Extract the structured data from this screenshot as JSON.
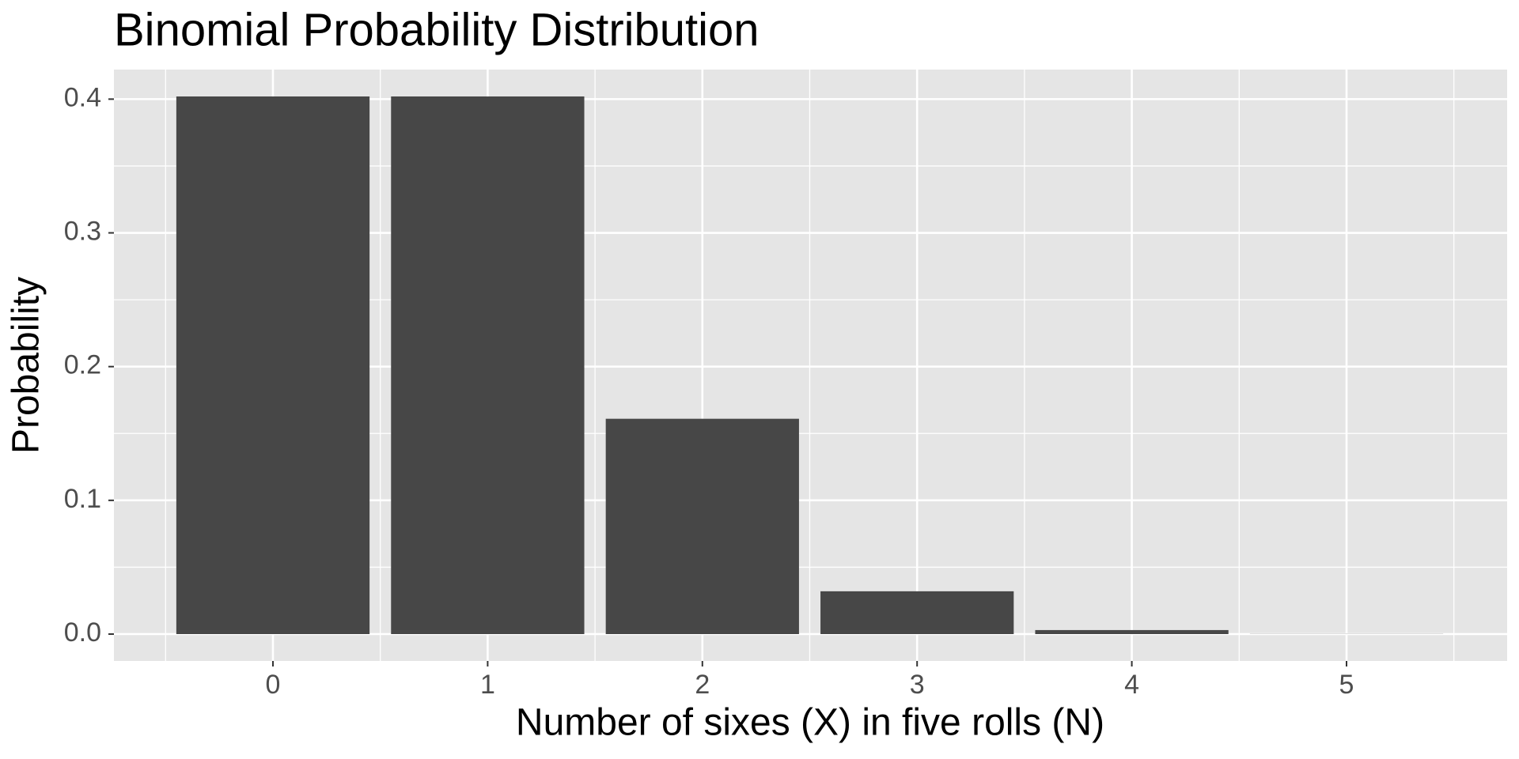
{
  "chart_data": {
    "type": "bar",
    "title": "Binomial Probability Distribution",
    "x_label": "Number of sixes (X) in five rolls (N)",
    "y_label": "Probability",
    "categories": [
      "0",
      "1",
      "2",
      "3",
      "4",
      "5"
    ],
    "values": [
      0.402,
      0.402,
      0.161,
      0.032,
      0.003,
      0.0001
    ],
    "color": "#474747",
    "ylim": [
      -0.0201,
      0.4221
    ],
    "yticks": [
      {
        "value": 0,
        "label": "0.0"
      },
      0.1,
      0.2,
      0.3,
      0.4
    ],
    "grid": true
  }
}
